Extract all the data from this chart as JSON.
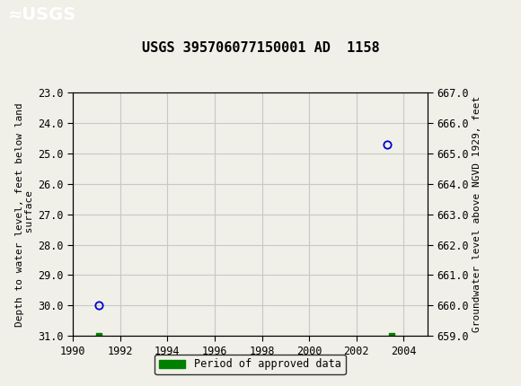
{
  "title": "USGS 395706077150001 AD  1158",
  "ylabel_left": "Depth to water level, feet below land\n surface",
  "ylabel_right": "Groundwater level above NGVD 1929, feet",
  "xlim": [
    1990,
    2005
  ],
  "ylim_left_top": 23.0,
  "ylim_left_bottom": 31.0,
  "ylim_right_top": 667.0,
  "ylim_right_bottom": 659.0,
  "xticks": [
    1990,
    1992,
    1994,
    1996,
    1998,
    2000,
    2002,
    2004
  ],
  "yticks_left": [
    23.0,
    24.0,
    25.0,
    26.0,
    27.0,
    28.0,
    29.0,
    30.0,
    31.0
  ],
  "yticks_right": [
    667.0,
    666.0,
    665.0,
    664.0,
    663.0,
    662.0,
    661.0,
    660.0,
    659.0
  ],
  "data_points_x": [
    1991.1,
    2003.3
  ],
  "data_points_y": [
    30.0,
    24.7
  ],
  "data_color": "#0000cc",
  "approved_x1": [
    1991.1
  ],
  "approved_y1": [
    31.0
  ],
  "approved_x2": [
    2003.5
  ],
  "approved_y2": [
    31.0
  ],
  "approved_color": "#008000",
  "legend_label": "Period of approved data",
  "header_color": "#1a7a40",
  "bg_color": "#f0f0e8",
  "plot_bg_color": "#f0f0e8",
  "grid_color": "#c8c8c8",
  "font_family": "monospace",
  "title_fontsize": 11,
  "tick_fontsize": 8.5,
  "label_fontsize": 8
}
